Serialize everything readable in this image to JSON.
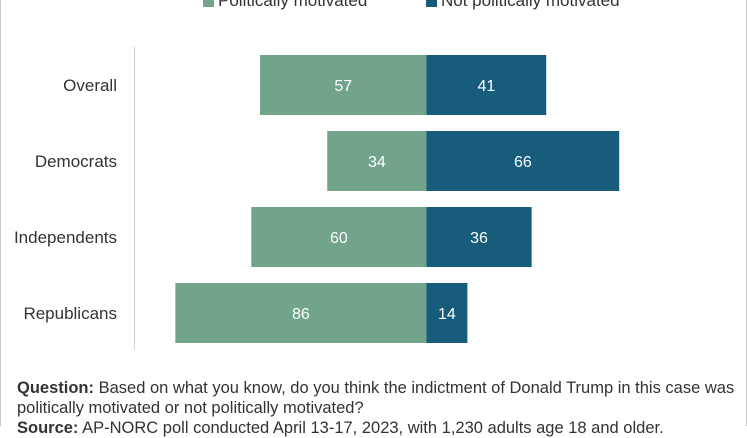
{
  "legend": {
    "items": [
      {
        "label": "Politically motivated",
        "color": "#71a48a"
      },
      {
        "label": "Not politically motivated",
        "color": "#175c7b"
      }
    ]
  },
  "chart_data": {
    "type": "bar",
    "orientation": "horizontal-diverging",
    "categories": [
      "Overall",
      "Democrats",
      "Independents",
      "Republicans"
    ],
    "series": [
      {
        "name": "Politically motivated",
        "color": "#71a48a",
        "values": [
          57,
          34,
          60,
          86
        ]
      },
      {
        "name": "Not politically motivated",
        "color": "#175c7b",
        "values": [
          41,
          66,
          36,
          14
        ]
      }
    ],
    "data_labels": true,
    "legend_position": "top",
    "grid": false
  },
  "footnote": {
    "question_label": "Question:",
    "question_text": "Based on what you know, do you think the indictment of Donald Trump in this case was politically motivated or not politically motivated?",
    "source_label": "Source:",
    "source_text": "AP-NORC poll conducted April 13-17, 2023, with 1,230 adults age 18 and older."
  }
}
